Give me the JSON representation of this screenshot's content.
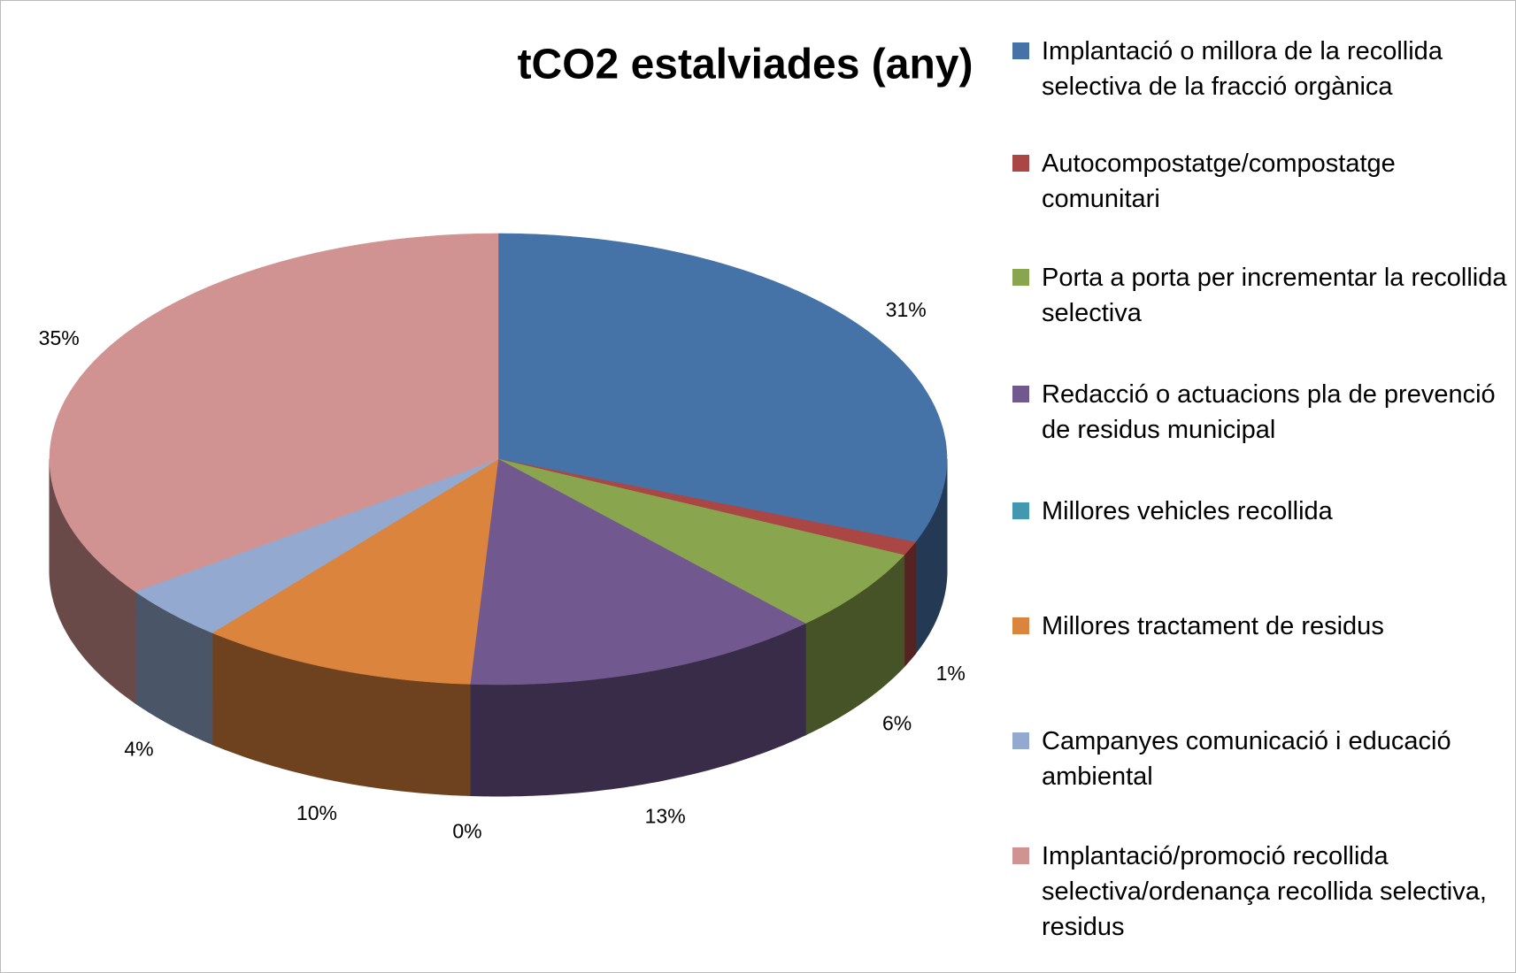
{
  "chart_data": {
    "type": "pie3d",
    "title": "tCO2 estalviades (any)",
    "categories": [
      "Implantació o millora de la recollida selectiva de la fracció orgànica",
      "Autocompostatge/compostatge comunitari",
      "Porta a porta per incrementar la recollida selectiva",
      "Redacció o actuacions pla de prevenció de residus municipal",
      "Millores vehicles recollida",
      "Millores tractament de residus",
      "Campanyes comunicació i educació ambiental",
      "Implantació/promoció recollida selectiva/ordenança recollida selectiva, residus"
    ],
    "values": [
      31,
      1,
      6,
      13,
      0,
      10,
      4,
      35
    ],
    "value_labels": [
      "31%",
      "1%",
      "6%",
      "13%",
      "0%",
      "10%",
      "4%",
      "35%"
    ],
    "colors": [
      "#4572a7",
      "#aa4643",
      "#89a54e",
      "#71588f",
      "#4198af",
      "#db843d",
      "#93a9cf",
      "#d19392"
    ],
    "legend": "right"
  }
}
